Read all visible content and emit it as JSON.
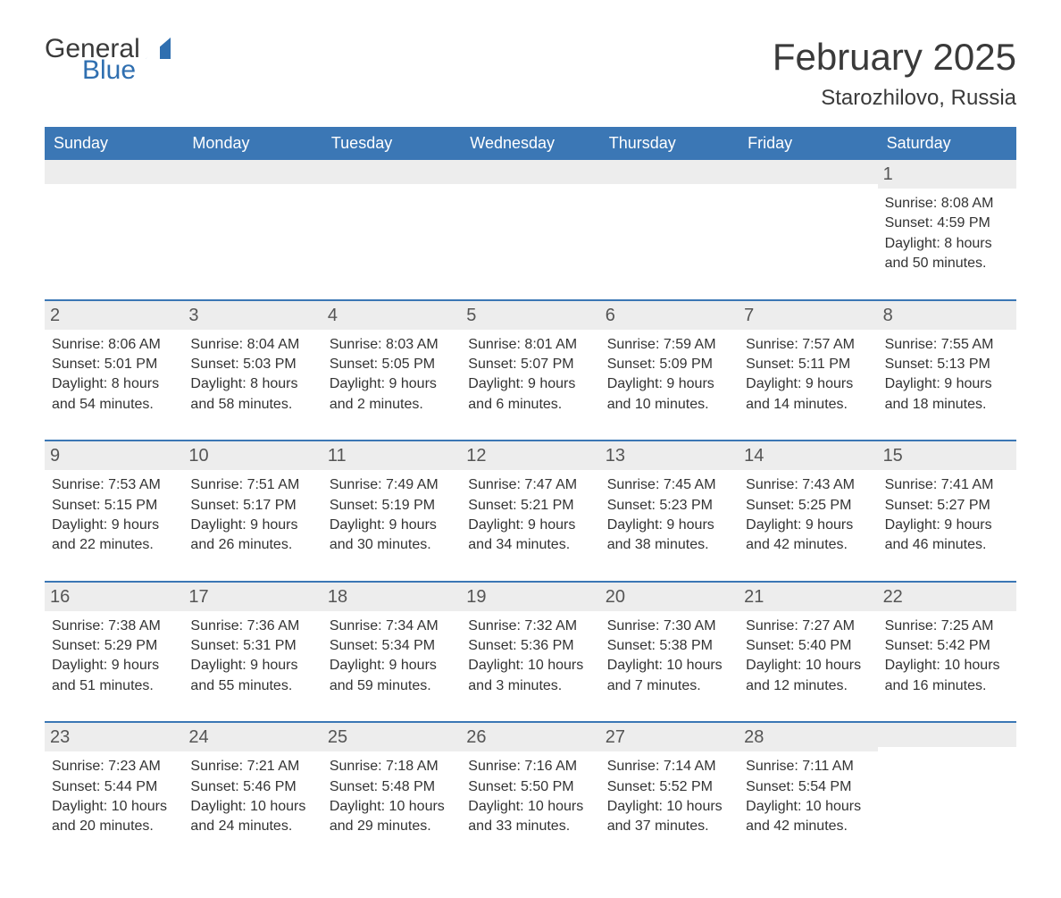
{
  "brand": {
    "word1": "General",
    "word2": "Blue",
    "text_color": "#3a3a3a",
    "accent_color": "#2f6fb0"
  },
  "header": {
    "title": "February 2025",
    "location": "Starozhilovo, Russia"
  },
  "colors": {
    "header_bg": "#3b77b5",
    "header_text": "#ffffff",
    "row_stripe": "#ededed",
    "body_text": "#333333",
    "border": "#3b77b5",
    "background": "#ffffff"
  },
  "weekdays": [
    "Sunday",
    "Monday",
    "Tuesday",
    "Wednesday",
    "Thursday",
    "Friday",
    "Saturday"
  ],
  "weeks": [
    [
      null,
      null,
      null,
      null,
      null,
      null,
      {
        "n": "1",
        "sunrise": "Sunrise: 8:08 AM",
        "sunset": "Sunset: 4:59 PM",
        "day1": "Daylight: 8 hours",
        "day2": "and 50 minutes."
      }
    ],
    [
      {
        "n": "2",
        "sunrise": "Sunrise: 8:06 AM",
        "sunset": "Sunset: 5:01 PM",
        "day1": "Daylight: 8 hours",
        "day2": "and 54 minutes."
      },
      {
        "n": "3",
        "sunrise": "Sunrise: 8:04 AM",
        "sunset": "Sunset: 5:03 PM",
        "day1": "Daylight: 8 hours",
        "day2": "and 58 minutes."
      },
      {
        "n": "4",
        "sunrise": "Sunrise: 8:03 AM",
        "sunset": "Sunset: 5:05 PM",
        "day1": "Daylight: 9 hours",
        "day2": "and 2 minutes."
      },
      {
        "n": "5",
        "sunrise": "Sunrise: 8:01 AM",
        "sunset": "Sunset: 5:07 PM",
        "day1": "Daylight: 9 hours",
        "day2": "and 6 minutes."
      },
      {
        "n": "6",
        "sunrise": "Sunrise: 7:59 AM",
        "sunset": "Sunset: 5:09 PM",
        "day1": "Daylight: 9 hours",
        "day2": "and 10 minutes."
      },
      {
        "n": "7",
        "sunrise": "Sunrise: 7:57 AM",
        "sunset": "Sunset: 5:11 PM",
        "day1": "Daylight: 9 hours",
        "day2": "and 14 minutes."
      },
      {
        "n": "8",
        "sunrise": "Sunrise: 7:55 AM",
        "sunset": "Sunset: 5:13 PM",
        "day1": "Daylight: 9 hours",
        "day2": "and 18 minutes."
      }
    ],
    [
      {
        "n": "9",
        "sunrise": "Sunrise: 7:53 AM",
        "sunset": "Sunset: 5:15 PM",
        "day1": "Daylight: 9 hours",
        "day2": "and 22 minutes."
      },
      {
        "n": "10",
        "sunrise": "Sunrise: 7:51 AM",
        "sunset": "Sunset: 5:17 PM",
        "day1": "Daylight: 9 hours",
        "day2": "and 26 minutes."
      },
      {
        "n": "11",
        "sunrise": "Sunrise: 7:49 AM",
        "sunset": "Sunset: 5:19 PM",
        "day1": "Daylight: 9 hours",
        "day2": "and 30 minutes."
      },
      {
        "n": "12",
        "sunrise": "Sunrise: 7:47 AM",
        "sunset": "Sunset: 5:21 PM",
        "day1": "Daylight: 9 hours",
        "day2": "and 34 minutes."
      },
      {
        "n": "13",
        "sunrise": "Sunrise: 7:45 AM",
        "sunset": "Sunset: 5:23 PM",
        "day1": "Daylight: 9 hours",
        "day2": "and 38 minutes."
      },
      {
        "n": "14",
        "sunrise": "Sunrise: 7:43 AM",
        "sunset": "Sunset: 5:25 PM",
        "day1": "Daylight: 9 hours",
        "day2": "and 42 minutes."
      },
      {
        "n": "15",
        "sunrise": "Sunrise: 7:41 AM",
        "sunset": "Sunset: 5:27 PM",
        "day1": "Daylight: 9 hours",
        "day2": "and 46 minutes."
      }
    ],
    [
      {
        "n": "16",
        "sunrise": "Sunrise: 7:38 AM",
        "sunset": "Sunset: 5:29 PM",
        "day1": "Daylight: 9 hours",
        "day2": "and 51 minutes."
      },
      {
        "n": "17",
        "sunrise": "Sunrise: 7:36 AM",
        "sunset": "Sunset: 5:31 PM",
        "day1": "Daylight: 9 hours",
        "day2": "and 55 minutes."
      },
      {
        "n": "18",
        "sunrise": "Sunrise: 7:34 AM",
        "sunset": "Sunset: 5:34 PM",
        "day1": "Daylight: 9 hours",
        "day2": "and 59 minutes."
      },
      {
        "n": "19",
        "sunrise": "Sunrise: 7:32 AM",
        "sunset": "Sunset: 5:36 PM",
        "day1": "Daylight: 10 hours",
        "day2": "and 3 minutes."
      },
      {
        "n": "20",
        "sunrise": "Sunrise: 7:30 AM",
        "sunset": "Sunset: 5:38 PM",
        "day1": "Daylight: 10 hours",
        "day2": "and 7 minutes."
      },
      {
        "n": "21",
        "sunrise": "Sunrise: 7:27 AM",
        "sunset": "Sunset: 5:40 PM",
        "day1": "Daylight: 10 hours",
        "day2": "and 12 minutes."
      },
      {
        "n": "22",
        "sunrise": "Sunrise: 7:25 AM",
        "sunset": "Sunset: 5:42 PM",
        "day1": "Daylight: 10 hours",
        "day2": "and 16 minutes."
      }
    ],
    [
      {
        "n": "23",
        "sunrise": "Sunrise: 7:23 AM",
        "sunset": "Sunset: 5:44 PM",
        "day1": "Daylight: 10 hours",
        "day2": "and 20 minutes."
      },
      {
        "n": "24",
        "sunrise": "Sunrise: 7:21 AM",
        "sunset": "Sunset: 5:46 PM",
        "day1": "Daylight: 10 hours",
        "day2": "and 24 minutes."
      },
      {
        "n": "25",
        "sunrise": "Sunrise: 7:18 AM",
        "sunset": "Sunset: 5:48 PM",
        "day1": "Daylight: 10 hours",
        "day2": "and 29 minutes."
      },
      {
        "n": "26",
        "sunrise": "Sunrise: 7:16 AM",
        "sunset": "Sunset: 5:50 PM",
        "day1": "Daylight: 10 hours",
        "day2": "and 33 minutes."
      },
      {
        "n": "27",
        "sunrise": "Sunrise: 7:14 AM",
        "sunset": "Sunset: 5:52 PM",
        "day1": "Daylight: 10 hours",
        "day2": "and 37 minutes."
      },
      {
        "n": "28",
        "sunrise": "Sunrise: 7:11 AM",
        "sunset": "Sunset: 5:54 PM",
        "day1": "Daylight: 10 hours",
        "day2": "and 42 minutes."
      },
      null
    ]
  ]
}
